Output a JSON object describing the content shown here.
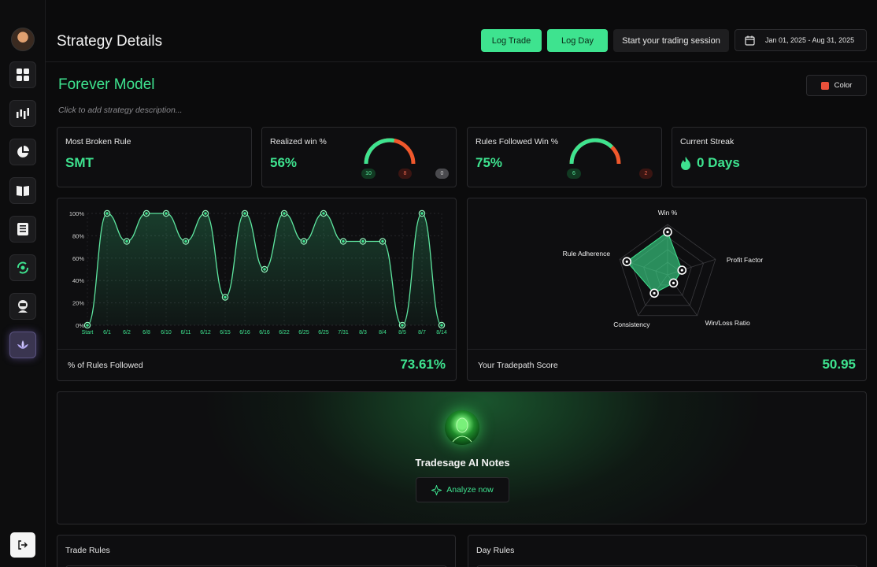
{
  "header": {
    "title": "Strategy Details",
    "log_trade": "Log Trade",
    "log_day": "Log Day",
    "start_session": "Start your trading session",
    "date_range": "Jan 01, 2025 - Aug 31, 2025"
  },
  "strategy": {
    "name": "Forever Model",
    "description_placeholder": "Click to add strategy description...",
    "color_label": "Color",
    "color_value": "#e8503a"
  },
  "stats": {
    "most_broken": {
      "label": "Most Broken Rule",
      "value": "SMT"
    },
    "realized_win": {
      "label": "Realized win %",
      "value": "56%",
      "wins": "10",
      "losses": "8",
      "breakeven": "0",
      "fraction": 0.56
    },
    "rules_followed_win": {
      "label": "Rules Followed Win %",
      "value": "75%",
      "wins": "6",
      "losses": "2",
      "fraction": 0.75
    },
    "streak": {
      "label": "Current Streak",
      "value": "0 Days"
    }
  },
  "chart_data": [
    {
      "type": "area",
      "title": "% of Rules Followed",
      "categories": [
        "Start",
        "6/1",
        "6/2",
        "6/8",
        "6/10",
        "6/11",
        "6/12",
        "6/15",
        "6/16",
        "6/16",
        "6/22",
        "6/25",
        "6/25",
        "7/31",
        "8/3",
        "8/4",
        "8/5",
        "8/7",
        "8/14"
      ],
      "values": [
        0,
        100,
        75,
        100,
        100,
        75,
        100,
        25,
        100,
        50,
        100,
        75,
        100,
        75,
        75,
        75,
        0,
        100,
        0
      ],
      "y_ticks": [
        "0%",
        "20%",
        "40%",
        "60%",
        "80%",
        "100%"
      ],
      "ylim": [
        0,
        100
      ],
      "grid": true
    },
    {
      "type": "radar",
      "title": "Your Tradepath Score",
      "axes": [
        "Win %",
        "Profit Factor",
        "Win/Loss Ratio",
        "Consistency",
        "Rule Adherence"
      ],
      "values": [
        0.85,
        0.3,
        0.2,
        0.45,
        0.85
      ],
      "max": 1
    }
  ],
  "rules_chart": {
    "footer_label": "% of Rules Followed",
    "footer_value": "73.61%"
  },
  "score_chart": {
    "footer_label": "Your Tradepath Score",
    "footer_value": "50.95"
  },
  "ai": {
    "title": "Tradesage AI Notes",
    "button": "Analyze now"
  },
  "rules": {
    "trade": "Trade Rules",
    "day": "Day Rules"
  },
  "colors": {
    "accent": "#3ee38f",
    "loss": "#f0582c"
  }
}
